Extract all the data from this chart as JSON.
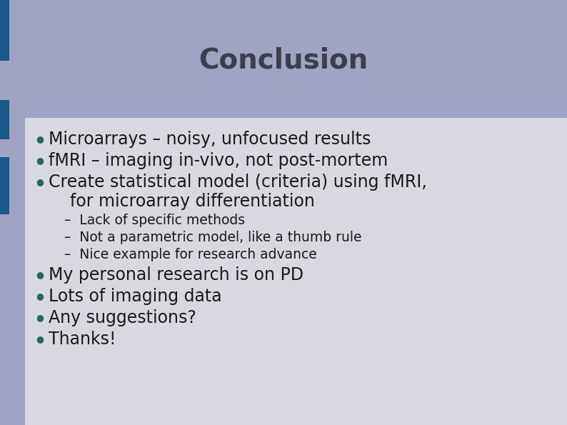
{
  "title": "Conclusion",
  "title_color": "#3d3d4f",
  "title_fontsize": 28,
  "title_fontweight": "bold",
  "bg_color": "#9fa3c4",
  "content_bg_color": "#d8d8e0",
  "left_bar_color": "#1a5a8a",
  "bullet_color": "#2a6655",
  "bullet_items": [
    "Microarrays – noisy, unfocused results",
    "fMRI – imaging in-vivo, not post-mortem",
    "Create statistical model (criteria) using fMRI,",
    "    for microarray differentiation",
    "My personal research is on PD",
    "Lots of imaging data",
    "Any suggestions?",
    "Thanks!"
  ],
  "sub_items": [
    "–  Lack of specific methods",
    "–  Not a parametric model, like a thumb rule",
    "–  Nice example for research advance"
  ],
  "main_fontsize": 17,
  "sub_fontsize": 13.5,
  "text_color": "#1a1a1a",
  "fig_width": 7.94,
  "fig_height": 5.95,
  "dpi": 100
}
